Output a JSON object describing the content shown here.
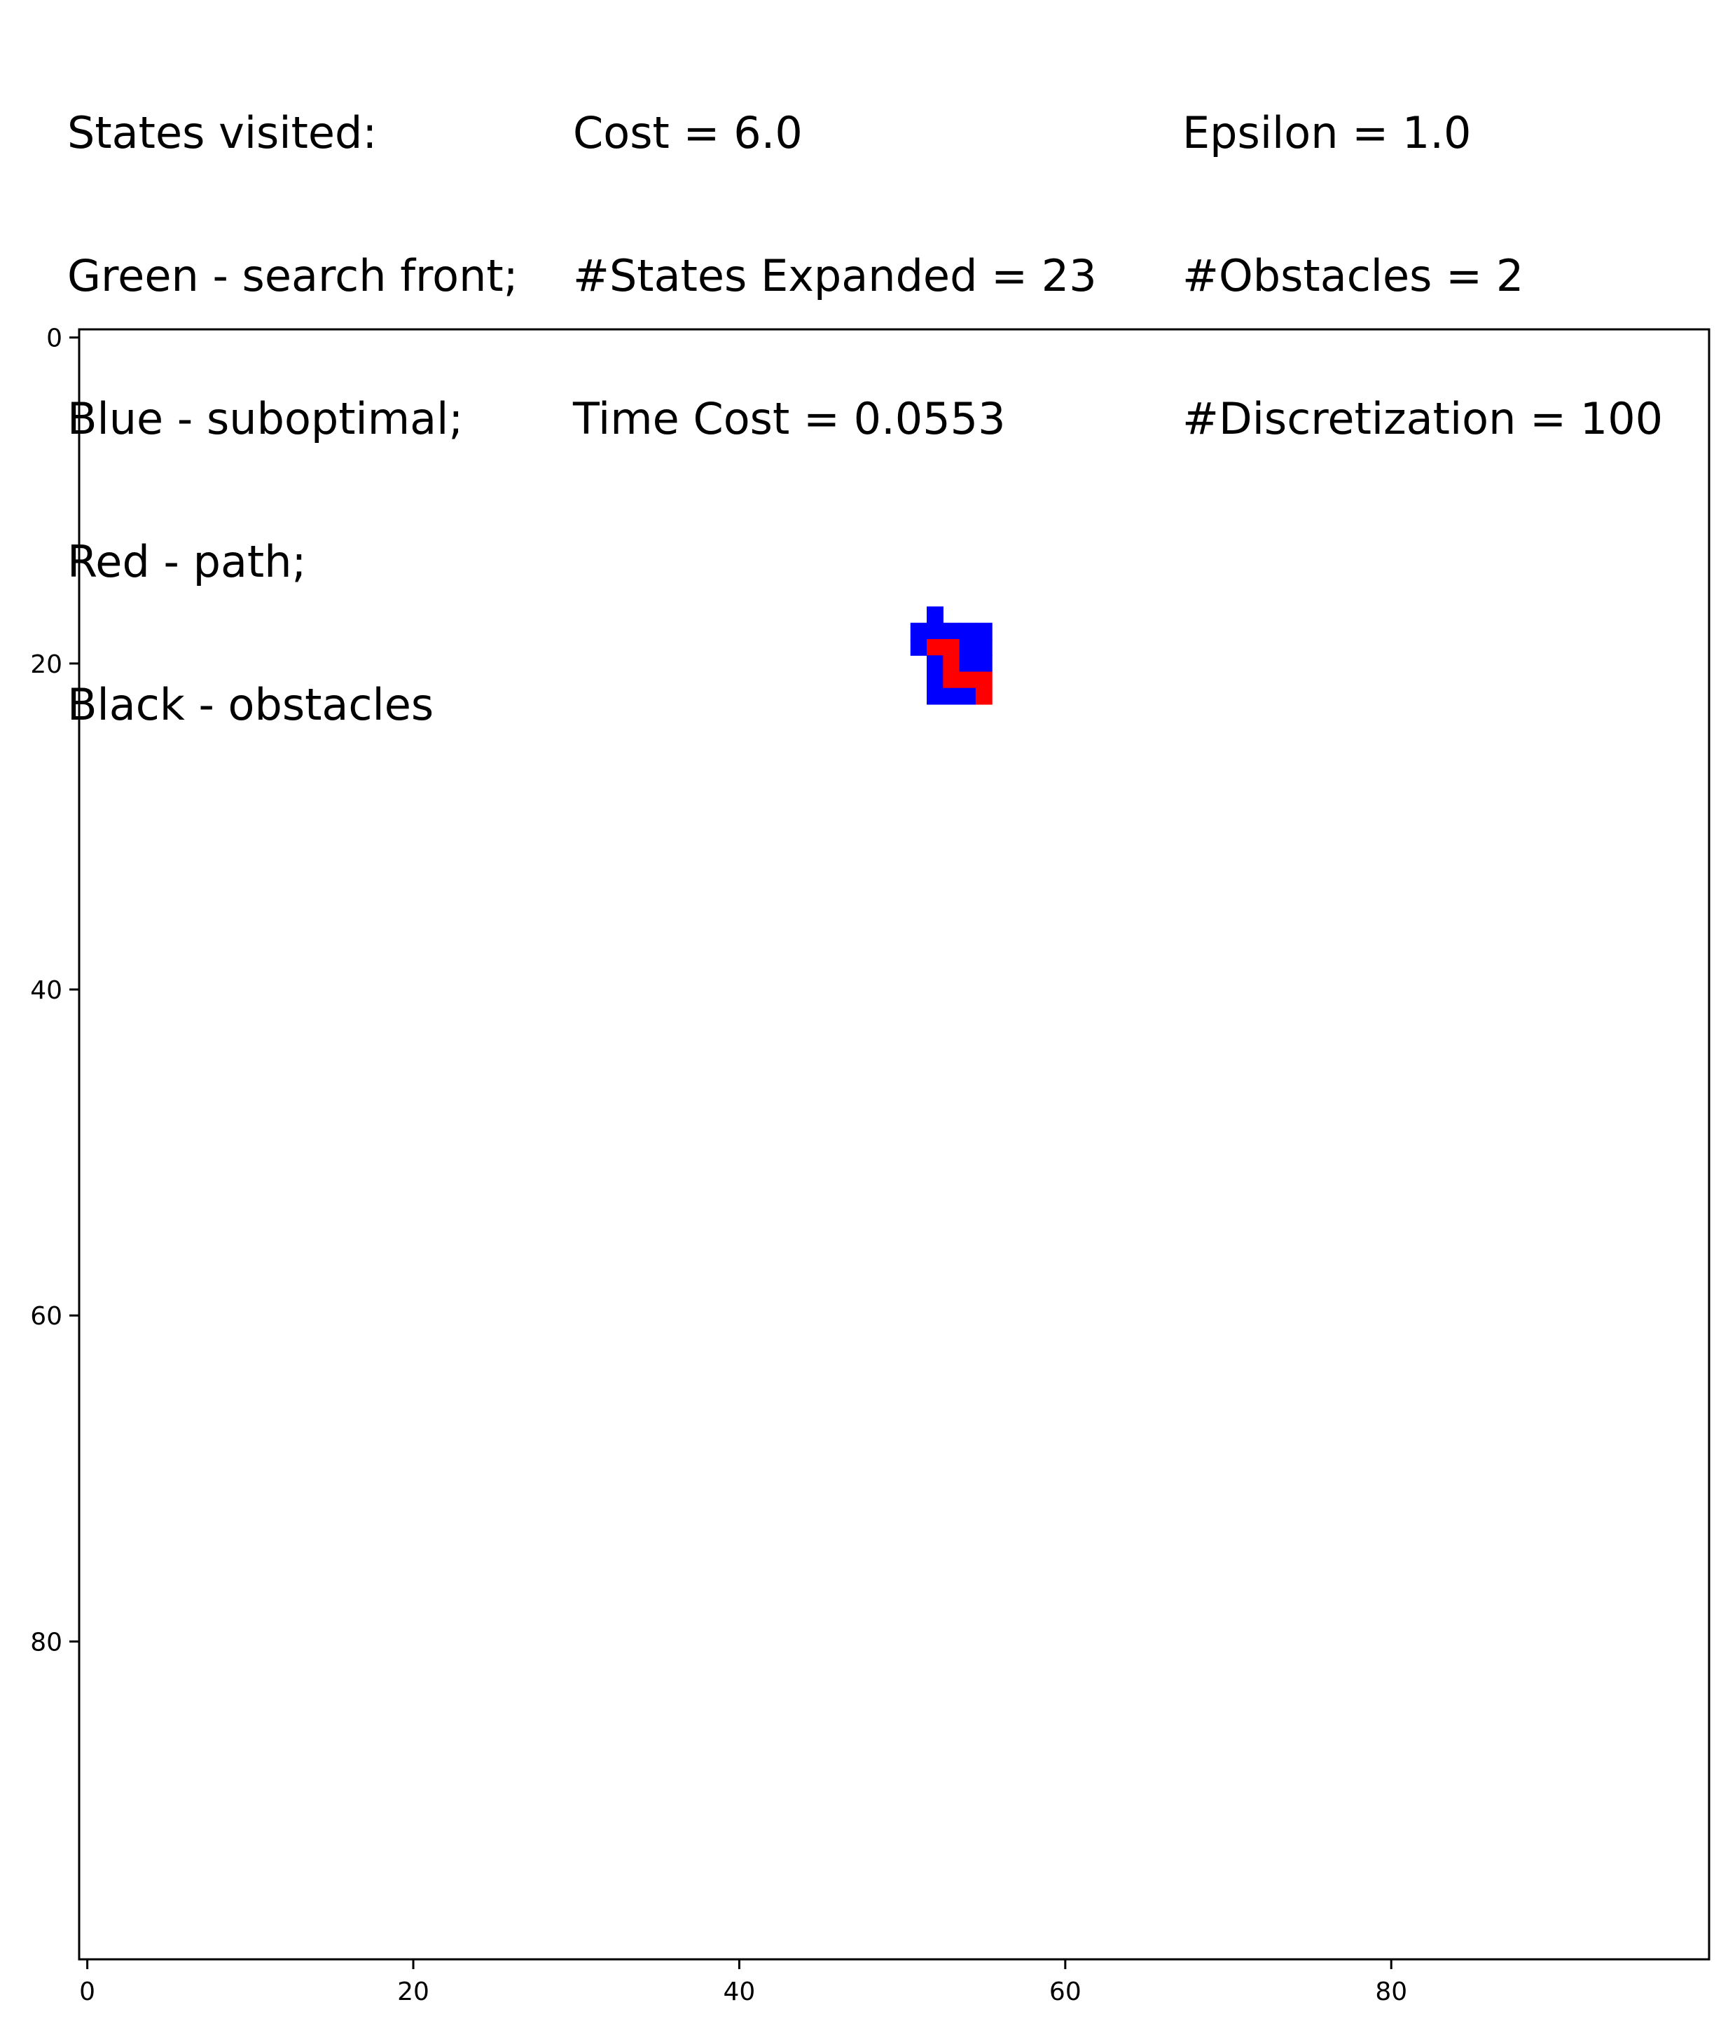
{
  "info": {
    "legend_lines": [
      "States visited:",
      "Green - search front;",
      "Blue - suboptimal;",
      "Red - path;",
      "Black - obstacles"
    ],
    "stats_lines": [
      "Cost = 6.0",
      "#States Expanded = 23",
      "Time Cost = 0.0553"
    ],
    "params_lines": [
      "Epsilon = 1.0",
      "#Obstacles = 2",
      "#Discretization = 100"
    ]
  },
  "chart_data": {
    "type": "heatmap",
    "grid_size": 100,
    "xlim": [
      -0.5,
      99.5
    ],
    "ylim": [
      99.5,
      -0.5
    ],
    "y_inverted": true,
    "grid": false,
    "x_ticks": [
      0,
      20,
      40,
      60,
      80
    ],
    "y_ticks": [
      0,
      20,
      40,
      60,
      80
    ],
    "x_tick_labels": [
      "0",
      "20",
      "40",
      "60",
      "80"
    ],
    "y_tick_labels": [
      "0",
      "20",
      "40",
      "60",
      "80"
    ],
    "colors": {
      "background": "#ffffff",
      "suboptimal": "#0000ff",
      "path": "#ff0000",
      "search_front": "#00ff00",
      "obstacle": "#000000"
    },
    "cells": [
      {
        "col": 52,
        "row": 17,
        "state": "suboptimal"
      },
      {
        "col": 51,
        "row": 18,
        "state": "suboptimal"
      },
      {
        "col": 52,
        "row": 18,
        "state": "suboptimal"
      },
      {
        "col": 53,
        "row": 18,
        "state": "suboptimal"
      },
      {
        "col": 54,
        "row": 18,
        "state": "suboptimal"
      },
      {
        "col": 55,
        "row": 18,
        "state": "suboptimal"
      },
      {
        "col": 51,
        "row": 19,
        "state": "suboptimal"
      },
      {
        "col": 52,
        "row": 19,
        "state": "path"
      },
      {
        "col": 53,
        "row": 19,
        "state": "path"
      },
      {
        "col": 54,
        "row": 19,
        "state": "suboptimal"
      },
      {
        "col": 55,
        "row": 19,
        "state": "suboptimal"
      },
      {
        "col": 52,
        "row": 20,
        "state": "suboptimal"
      },
      {
        "col": 53,
        "row": 20,
        "state": "path"
      },
      {
        "col": 54,
        "row": 20,
        "state": "suboptimal"
      },
      {
        "col": 55,
        "row": 20,
        "state": "suboptimal"
      },
      {
        "col": 52,
        "row": 21,
        "state": "suboptimal"
      },
      {
        "col": 53,
        "row": 21,
        "state": "path"
      },
      {
        "col": 54,
        "row": 21,
        "state": "path"
      },
      {
        "col": 55,
        "row": 21,
        "state": "path"
      },
      {
        "col": 52,
        "row": 22,
        "state": "suboptimal"
      },
      {
        "col": 53,
        "row": 22,
        "state": "suboptimal"
      },
      {
        "col": 54,
        "row": 22,
        "state": "suboptimal"
      },
      {
        "col": 55,
        "row": 22,
        "state": "path"
      }
    ]
  }
}
